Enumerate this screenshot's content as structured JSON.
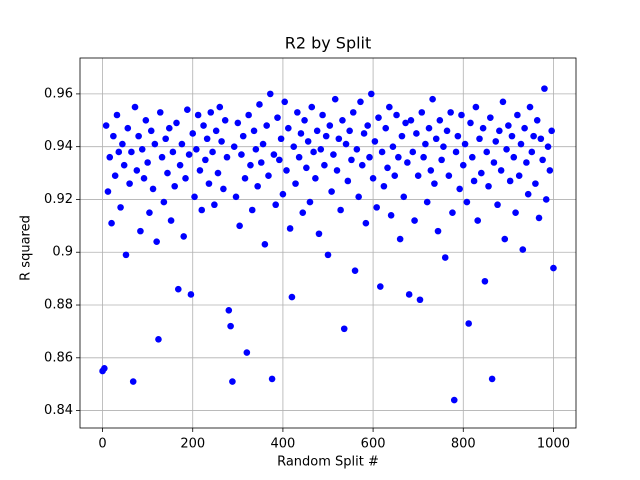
{
  "chart_data": {
    "type": "scatter",
    "title": "R2 by Split",
    "xlabel": "Random Split #",
    "ylabel": "R squared",
    "color": "#0000ff",
    "grid": true,
    "xlim": [
      -50,
      1050
    ],
    "ylim": [
      0.8334,
      0.9736
    ],
    "xticks": [
      0,
      200,
      400,
      600,
      800,
      1000
    ],
    "yticks": [
      0.84,
      0.86,
      0.88,
      0.9,
      0.92,
      0.94,
      0.96
    ],
    "x": [
      0,
      4,
      8,
      12,
      16,
      20,
      24,
      28,
      32,
      36,
      40,
      44,
      48,
      52,
      56,
      60,
      64,
      68,
      72,
      76,
      80,
      84,
      88,
      92,
      96,
      100,
      104,
      108,
      112,
      116,
      120,
      124,
      128,
      132,
      136,
      140,
      144,
      148,
      152,
      156,
      160,
      164,
      168,
      172,
      176,
      180,
      184,
      188,
      192,
      196,
      200,
      204,
      208,
      212,
      216,
      220,
      224,
      228,
      232,
      236,
      240,
      244,
      248,
      252,
      256,
      260,
      264,
      268,
      272,
      276,
      280,
      284,
      288,
      292,
      296,
      300,
      304,
      308,
      312,
      316,
      320,
      324,
      328,
      332,
      336,
      340,
      344,
      348,
      352,
      356,
      360,
      364,
      368,
      372,
      376,
      380,
      384,
      388,
      392,
      396,
      400,
      404,
      408,
      412,
      416,
      420,
      424,
      428,
      432,
      436,
      440,
      444,
      448,
      452,
      456,
      460,
      464,
      468,
      472,
      476,
      480,
      484,
      488,
      492,
      496,
      500,
      504,
      508,
      512,
      516,
      520,
      524,
      528,
      532,
      536,
      540,
      544,
      548,
      552,
      556,
      560,
      564,
      568,
      572,
      576,
      580,
      584,
      588,
      592,
      596,
      600,
      604,
      608,
      612,
      616,
      620,
      624,
      628,
      632,
      636,
      640,
      644,
      648,
      652,
      656,
      660,
      664,
      668,
      672,
      676,
      680,
      684,
      688,
      692,
      696,
      700,
      704,
      708,
      712,
      716,
      720,
      724,
      728,
      732,
      736,
      740,
      744,
      748,
      752,
      756,
      760,
      764,
      768,
      772,
      776,
      780,
      784,
      788,
      792,
      796,
      800,
      804,
      808,
      812,
      816,
      820,
      824,
      828,
      832,
      836,
      840,
      844,
      848,
      852,
      856,
      860,
      864,
      868,
      872,
      876,
      880,
      884,
      888,
      892,
      896,
      900,
      904,
      908,
      912,
      916,
      920,
      924,
      928,
      932,
      936,
      940,
      944,
      948,
      952,
      956,
      960,
      964,
      968,
      972,
      976,
      980,
      984,
      988,
      992,
      996,
      1000
    ],
    "values": [
      0.855,
      0.856,
      0.948,
      0.923,
      0.936,
      0.911,
      0.944,
      0.929,
      0.952,
      0.938,
      0.917,
      0.941,
      0.933,
      0.899,
      0.947,
      0.926,
      0.938,
      0.851,
      0.955,
      0.931,
      0.944,
      0.908,
      0.939,
      0.928,
      0.95,
      0.934,
      0.915,
      0.946,
      0.924,
      0.941,
      0.904,
      0.867,
      0.953,
      0.936,
      0.919,
      0.943,
      0.93,
      0.947,
      0.912,
      0.938,
      0.925,
      0.949,
      0.886,
      0.933,
      0.941,
      0.906,
      0.928,
      0.954,
      0.937,
      0.884,
      0.945,
      0.921,
      0.939,
      0.952,
      0.931,
      0.916,
      0.948,
      0.935,
      0.943,
      0.926,
      0.953,
      0.938,
      0.918,
      0.946,
      0.93,
      0.955,
      0.942,
      0.924,
      0.95,
      0.936,
      0.878,
      0.872,
      0.851,
      0.94,
      0.921,
      0.949,
      0.91,
      0.937,
      0.944,
      0.928,
      0.862,
      0.952,
      0.933,
      0.916,
      0.946,
      0.939,
      0.925,
      0.956,
      0.934,
      0.941,
      0.903,
      0.948,
      0.929,
      0.96,
      0.852,
      0.937,
      0.918,
      0.951,
      0.935,
      0.943,
      0.922,
      0.957,
      0.931,
      0.947,
      0.909,
      0.883,
      0.94,
      0.926,
      0.953,
      0.936,
      0.945,
      0.915,
      0.95,
      0.932,
      0.942,
      0.919,
      0.955,
      0.938,
      0.928,
      0.946,
      0.907,
      0.939,
      0.952,
      0.933,
      0.944,
      0.899,
      0.948,
      0.923,
      0.937,
      0.958,
      0.931,
      0.943,
      0.916,
      0.95,
      0.871,
      0.941,
      0.927,
      0.946,
      0.935,
      0.953,
      0.893,
      0.939,
      0.921,
      0.957,
      0.933,
      0.945,
      0.911,
      0.948,
      0.936,
      0.96,
      0.928,
      0.942,
      0.917,
      0.951,
      0.887,
      0.938,
      0.925,
      0.947,
      0.932,
      0.955,
      0.914,
      0.94,
      0.929,
      0.952,
      0.936,
      0.905,
      0.944,
      0.921,
      0.949,
      0.934,
      0.884,
      0.95,
      0.938,
      0.912,
      0.945,
      0.929,
      0.882,
      0.953,
      0.936,
      0.941,
      0.919,
      0.947,
      0.931,
      0.958,
      0.926,
      0.943,
      0.908,
      0.95,
      0.935,
      0.94,
      0.898,
      0.946,
      0.929,
      0.953,
      0.915,
      0.844,
      0.938,
      0.944,
      0.924,
      0.952,
      0.933,
      0.941,
      0.919,
      0.873,
      0.949,
      0.936,
      0.927,
      0.955,
      0.912,
      0.943,
      0.93,
      0.947,
      0.889,
      0.938,
      0.925,
      0.951,
      0.852,
      0.934,
      0.942,
      0.918,
      0.946,
      0.931,
      0.957,
      0.905,
      0.939,
      0.948,
      0.927,
      0.944,
      0.936,
      0.915,
      0.952,
      0.929,
      0.941,
      0.901,
      0.947,
      0.934,
      0.922,
      0.955,
      0.938,
      0.944,
      0.926,
      0.95,
      0.913,
      0.943,
      0.935,
      0.962,
      0.92,
      0.94,
      0.931,
      0.946,
      0.894
    ]
  }
}
